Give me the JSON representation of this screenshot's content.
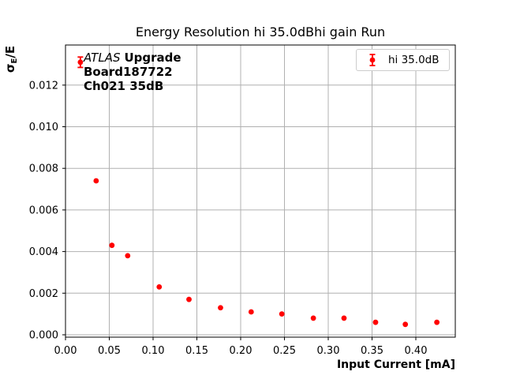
{
  "chart_data": {
    "type": "scatter",
    "title": "Energy Resolution hi 35.0dBhi gain Run",
    "xlabel": "Input Current [mA]",
    "ylabel": "σ_E/E",
    "xlim": [
      0,
      0.445
    ],
    "ylim": [
      -0.0001,
      0.0139
    ],
    "grid": true,
    "legend_position": "upper right",
    "x_ticks": [
      "0.00",
      "0.05",
      "0.10",
      "0.15",
      "0.20",
      "0.25",
      "0.30",
      "0.35",
      "0.40"
    ],
    "y_ticks": [
      "0.000",
      "0.002",
      "0.004",
      "0.006",
      "0.008",
      "0.010",
      "0.012"
    ],
    "series": [
      {
        "name": "hi 35.0dB",
        "color": "#ff0000",
        "marker": "circle-with-errorbars",
        "x": [
          0.017,
          0.035,
          0.053,
          0.071,
          0.107,
          0.141,
          0.177,
          0.212,
          0.247,
          0.283,
          0.318,
          0.354,
          0.388,
          0.424
        ],
        "y": [
          0.0131,
          0.0074,
          0.0043,
          0.0038,
          0.0023,
          0.0017,
          0.0013,
          0.0011,
          0.001,
          0.0008,
          0.0008,
          0.0006,
          0.0005,
          0.0006
        ],
        "yerr": [
          0.00025,
          0,
          0,
          0,
          0,
          0,
          0,
          0,
          0,
          0,
          0,
          0,
          0,
          0
        ]
      }
    ]
  },
  "y_axis": {
    "sigma": "σ",
    "subscript": "E",
    "rest": "/E"
  },
  "annotation": {
    "experiment": "ATLAS",
    "tag": "Upgrade",
    "board": "Board187722",
    "channel": "Ch021 35dB"
  },
  "legend": {
    "label": "hi 35.0dB"
  },
  "colors": {
    "series": "#ff0000",
    "grid": "#b0b0b0",
    "spine": "#000000",
    "legend_border": "#cccccc",
    "text": "#000000"
  }
}
